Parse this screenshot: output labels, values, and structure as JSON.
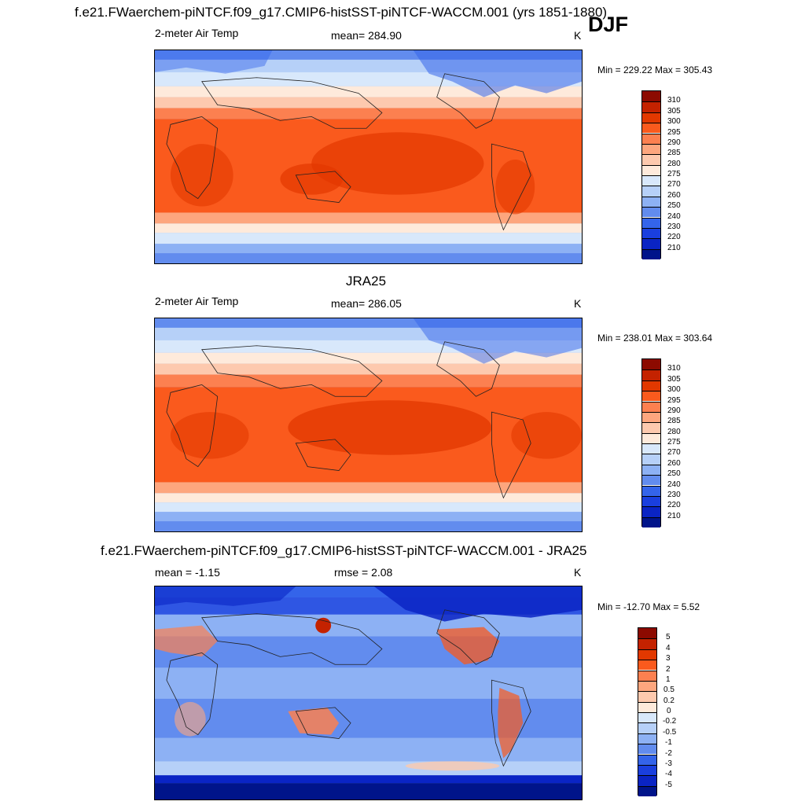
{
  "season": "DJF",
  "panels": [
    {
      "title": "f.e21.FWaerchem-piNTCF.f09_g17.CMIP6-histSST-piNTCF-WACCM.001 (yrs 1851-1880)",
      "left_label": "2-meter Air Temp",
      "center_label": "mean= 284.90",
      "units": "K",
      "minmax": "Min = 229.22 Max = 305.43"
    },
    {
      "title": "JRA25",
      "left_label": "2-meter Air Temp",
      "center_label": "mean= 286.05",
      "units": "K",
      "minmax": "Min = 238.01 Max = 303.64"
    },
    {
      "title": "f.e21.FWaerchem-piNTCF.f09_g17.CMIP6-histSST-piNTCF-WACCM.001 - JRA25",
      "left_label": "mean =  -1.15",
      "center_label": "rmse =   2.08",
      "units": "K",
      "minmax": "Min = -12.70 Max =   5.52"
    }
  ],
  "colorbars": {
    "temperature": {
      "labels": [
        "310",
        "305",
        "300",
        "295",
        "290",
        "285",
        "280",
        "275",
        "270",
        "260",
        "250",
        "240",
        "230",
        "220",
        "210"
      ],
      "colors": [
        "#8c0a00",
        "#c42200",
        "#e23800",
        "#fa5a1d",
        "#fc8050",
        "#fda67e",
        "#fdc9ae",
        "#feeadb",
        "#d8e8fb",
        "#b6d0f8",
        "#8db1f4",
        "#628cee",
        "#3464ea",
        "#1a3fde",
        "#0a24c4",
        "#00148a"
      ]
    },
    "difference": {
      "labels": [
        "5",
        "4",
        "3",
        "2",
        "1",
        "0.5",
        "0.2",
        "0",
        "-0.2",
        "-0.5",
        "-1",
        "-2",
        "-3",
        "-4",
        "-5"
      ],
      "colors": [
        "#8c0a00",
        "#c42200",
        "#e23800",
        "#fa5a1d",
        "#fc8050",
        "#fda67e",
        "#fdc9ae",
        "#feeadb",
        "#d8e8fb",
        "#b6d0f8",
        "#8db1f4",
        "#628cee",
        "#3464ea",
        "#1a3fde",
        "#0a24c4",
        "#00148a"
      ]
    }
  }
}
